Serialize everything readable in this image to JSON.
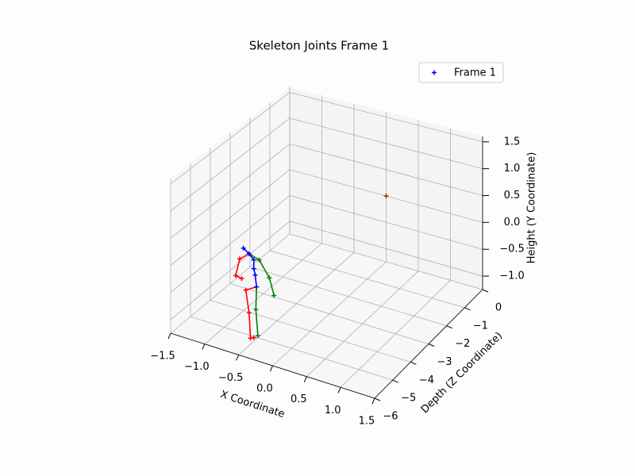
{
  "chart_data": {
    "type": "scatter3d",
    "title": "Skeleton Joints Frame 1",
    "xlabel": "X Coordinate",
    "ylabel": "Height (Y Coordinate)",
    "zlabel": "Depth (Z Coordinate)",
    "xlim": [
      -1.5,
      1.5
    ],
    "xticks": [
      {
        "value": -1.5,
        "label": "−1.5"
      },
      {
        "value": -1.0,
        "label": "−1.0"
      },
      {
        "value": -0.5,
        "label": "−0.5"
      },
      {
        "value": 0,
        "label": "0.0"
      },
      0.5,
      {
        "value": 1,
        "label": "1.0"
      },
      1.5
    ],
    "ylim": [
      -1.25,
      1.6
    ],
    "yticks": [
      {
        "value": -1.0,
        "label": "−1.0"
      },
      {
        "value": -0.5,
        "label": "−0.5"
      },
      {
        "value": 0,
        "label": "0.0"
      },
      0.5,
      {
        "value": 1,
        "label": "1.0"
      },
      1.5
    ],
    "zlim": [
      -6,
      0
    ],
    "zticks": [
      {
        "value": -6,
        "label": "−6"
      },
      {
        "value": -5,
        "label": "−5"
      },
      {
        "value": -4,
        "label": "−4"
      },
      {
        "value": -3,
        "label": "−3"
      },
      {
        "value": -2,
        "label": "−2"
      },
      {
        "value": -1,
        "label": "−1"
      },
      0
    ],
    "grid": true,
    "legend": "upper right",
    "series": [
      {
        "name": "Frame 1",
        "color": "#0000ff",
        "marker": "+",
        "x": [
          -0.715,
          -0.63,
          -0.56,
          -0.56,
          -0.54,
          -0.52,
          -0.77,
          -0.83,
          -0.74,
          -0.68,
          -0.63,
          -0.61,
          -0.56,
          -0.48,
          -0.33,
          -0.26,
          -0.53,
          -0.5,
          0
        ],
        "y": [
          0.32,
          0.25,
          0.16,
          0.0,
          -0.11,
          -0.32,
          0.1,
          -0.23,
          -0.25,
          -0.44,
          -0.84,
          -1.3,
          -1.27,
          0.19,
          -0.08,
          -0.38,
          -0.74,
          -1.21,
          0
        ],
        "z": [
          -5,
          -5,
          -5,
          -5,
          -5,
          -5,
          -5,
          -5,
          -5,
          -5,
          -5,
          -5,
          -5,
          -5,
          -5,
          -5,
          -5,
          -5,
          0
        ],
        "colors": [
          "#0000ff",
          "#0000ff",
          "#0000ff",
          "#0000ff",
          "#0000ff",
          "#0000ff",
          "#ff0000",
          "#ff0000",
          "#ff0000",
          "#ff0000",
          "#ff0000",
          "#ff0000",
          "#ff0000",
          "#008000",
          "#008000",
          "#008000",
          "#008000",
          "#008000",
          "#8b3a00"
        ]
      }
    ],
    "bones": [
      {
        "from": 0,
        "to": 1,
        "color": "#0000ff"
      },
      {
        "from": 1,
        "to": 2,
        "color": "#0000ff"
      },
      {
        "from": 2,
        "to": 3,
        "color": "#0000ff"
      },
      {
        "from": 3,
        "to": 4,
        "color": "#0000ff"
      },
      {
        "from": 4,
        "to": 5,
        "color": "#0000ff"
      },
      {
        "from": 1,
        "to": 6,
        "color": "#ff0000"
      },
      {
        "from": 6,
        "to": 7,
        "color": "#ff0000"
      },
      {
        "from": 7,
        "to": 8,
        "color": "#ff0000"
      },
      {
        "from": 5,
        "to": 9,
        "color": "#ff0000"
      },
      {
        "from": 9,
        "to": 10,
        "color": "#ff0000"
      },
      {
        "from": 10,
        "to": 11,
        "color": "#ff0000"
      },
      {
        "from": 11,
        "to": 12,
        "color": "#ff0000"
      },
      {
        "from": 1,
        "to": 13,
        "color": "#008000"
      },
      {
        "from": 13,
        "to": 14,
        "color": "#008000"
      },
      {
        "from": 14,
        "to": 15,
        "color": "#008000"
      },
      {
        "from": 5,
        "to": 16,
        "color": "#008000"
      },
      {
        "from": 16,
        "to": 17,
        "color": "#008000"
      }
    ]
  }
}
